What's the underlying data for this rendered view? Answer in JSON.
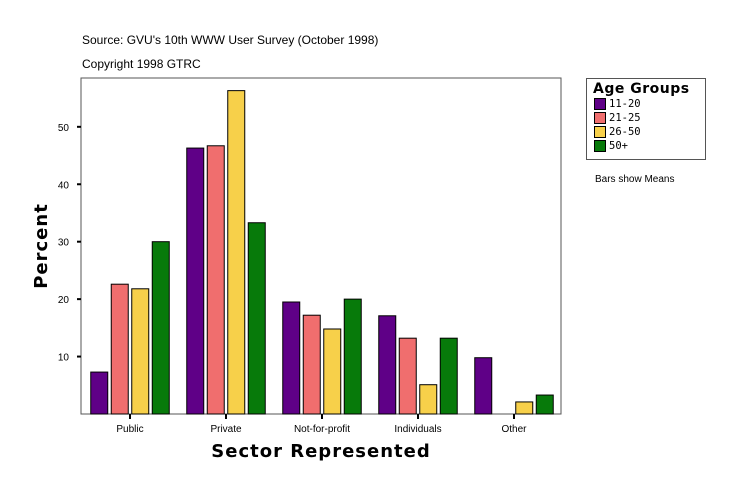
{
  "source": "Source: GVU's 10th WWW User Survey (October 1998)",
  "copyright": "Copyright 1998 GTRC",
  "note": "Bars show Means",
  "chart_data": {
    "type": "bar",
    "xlabel": "Sector Represented",
    "ylabel": "Percent",
    "categories": [
      "Public",
      "Private",
      "Not-for-profit",
      "Individuals",
      "Other"
    ],
    "yticks": [
      10,
      20,
      30,
      40,
      50
    ],
    "ylim": [
      0,
      58.5
    ],
    "grid": false,
    "legend_title": "Age Groups",
    "legend_position": "top-right",
    "series": [
      {
        "name": "11-20",
        "color": "#5f0087",
        "values": [
          7.3,
          46.3,
          19.5,
          17.1,
          9.8
        ]
      },
      {
        "name": "21-25",
        "color": "#f06e6e",
        "values": [
          22.6,
          46.7,
          17.2,
          13.2,
          0
        ]
      },
      {
        "name": "26-50",
        "color": "#f7d04a",
        "values": [
          21.8,
          56.3,
          14.8,
          5.1,
          2.1
        ]
      },
      {
        "name": "50+",
        "color": "#077a0a",
        "values": [
          30.0,
          33.3,
          20.0,
          13.2,
          3.3
        ]
      }
    ]
  }
}
